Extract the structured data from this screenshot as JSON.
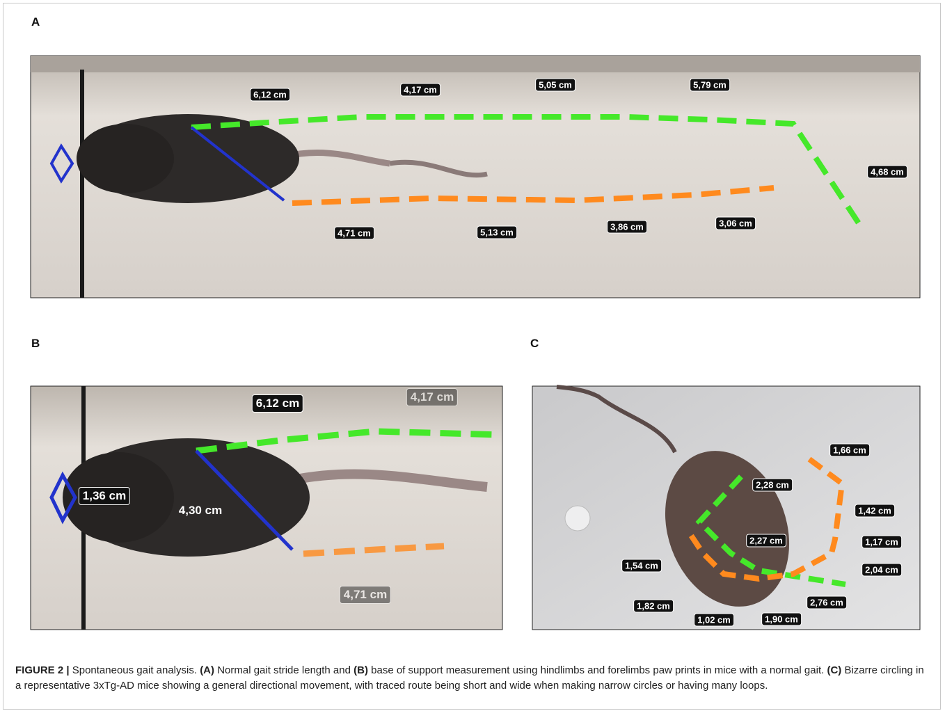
{
  "panels": [
    {
      "label": "A",
      "measurements": [
        "6,12 cm",
        "4,17 cm",
        "5,05 cm",
        "5,79 cm",
        "4,68 cm",
        "4,71 cm",
        "5,13 cm",
        "3,86 cm",
        "3,06 cm"
      ]
    },
    {
      "label": "B",
      "measurements": [
        "6,12 cm",
        "4,17 cm",
        "1,36 cm",
        "4,30 cm",
        "4,71 cm"
      ]
    },
    {
      "label": "C",
      "measurements": [
        "1,66 cm",
        "2,28 cm",
        "1,42 cm",
        "2,27 cm",
        "1,17 cm",
        "1,54 cm",
        "2,04 cm",
        "2,76 cm",
        "1,82 cm",
        "1,02 cm",
        "1,90 cm"
      ]
    }
  ],
  "caption": [
    {
      "text": "FIGURE 2 |",
      "bold": true
    },
    {
      "text": "Spontaneous gait analysis.",
      "bold": false
    },
    {
      "text": "(A)",
      "bold": true
    },
    {
      "text": "Normal gait stride length and",
      "bold": false
    },
    {
      "text": "(B)",
      "bold": true
    },
    {
      "text": "base of support measurement using hindlimbs and forelimbs paw prints in mice with a normal gait.",
      "bold": false
    },
    {
      "text": "(C)",
      "bold": true
    },
    {
      "text": "Bizarre circling in a representative 3xTg-AD mice showing a general directional movement, with traced route being short and wide when making narrow circles or having many loops.",
      "bold": false
    }
  ]
}
